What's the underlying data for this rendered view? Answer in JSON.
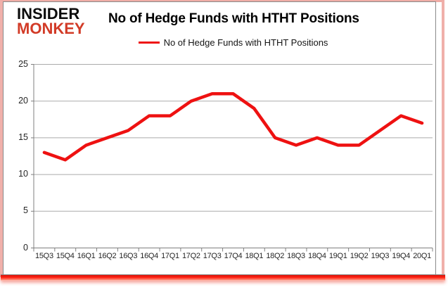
{
  "logo": {
    "line1": "INSIDER",
    "line2": "MONKEY"
  },
  "header": {
    "title": "No of Hedge Funds with HTHT Positions"
  },
  "legend": {
    "label": "No of Hedge Funds with HTHT Positions"
  },
  "colors": {
    "line": "#ee1111",
    "gridline": "#ababab",
    "axis": "#7f7f7f",
    "tick_text": "#262626",
    "frame_pink": "#f0b0aa",
    "bottom_bar_red": "#ff1f10",
    "logo_black": "#0c0c0c",
    "logo_red": "#d23b27"
  },
  "chart_data": {
    "type": "line",
    "title": "No of Hedge Funds with HTHT Positions",
    "categories": [
      "15Q3",
      "15Q4",
      "16Q1",
      "16Q2",
      "16Q3",
      "16Q4",
      "17Q1",
      "17Q2",
      "17Q3",
      "17Q4",
      "18Q1",
      "18Q2",
      "18Q3",
      "18Q4",
      "19Q1",
      "19Q2",
      "19Q3",
      "19Q4",
      "20Q1"
    ],
    "series": [
      {
        "name": "No of Hedge Funds with HTHT Positions",
        "color": "#ee1111",
        "values": [
          13,
          12,
          14,
          15,
          16,
          18,
          18,
          20,
          21,
          21,
          19,
          15,
          14,
          15,
          14,
          14,
          16,
          18,
          17
        ]
      }
    ],
    "xlabel": "",
    "ylabel": "",
    "ylim": [
      0,
      25
    ],
    "yticks": [
      0,
      5,
      10,
      15,
      20,
      25
    ],
    "grid": true,
    "legend_position": "top-center"
  }
}
